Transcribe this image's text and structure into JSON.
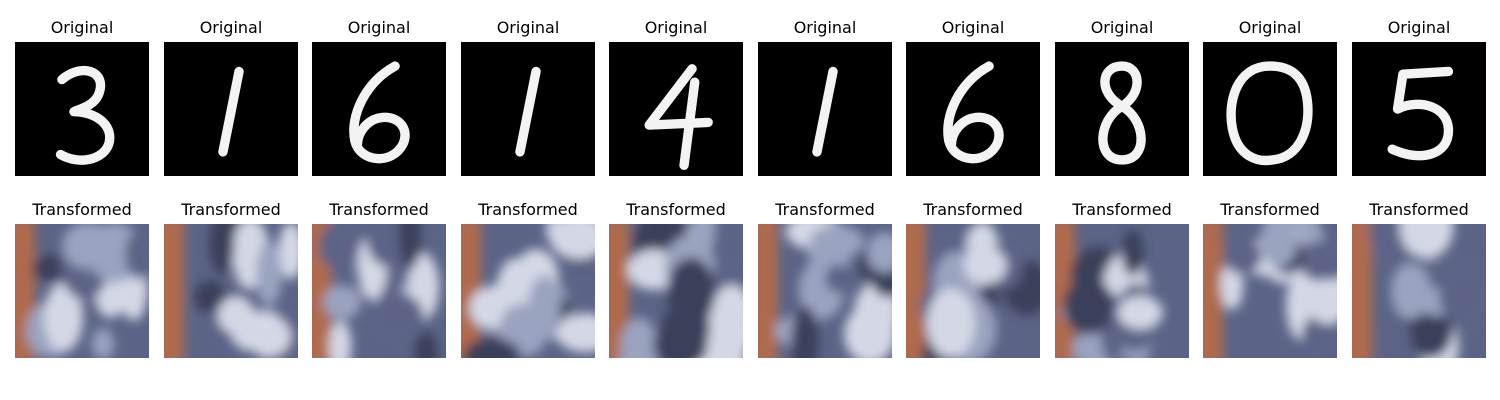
{
  "figure": {
    "original_title": "Original",
    "transformed_title": "Transformed",
    "digits": [
      "3",
      "1",
      "6",
      "1",
      "4",
      "1",
      "6",
      "8",
      "0",
      "5"
    ],
    "colors": {
      "original_bg": "#000000",
      "digit_stroke": "#f3f3f3",
      "transformed_tones": [
        "#3a3f5a",
        "#5b6487",
        "#9aa3bf",
        "#d4d8e6",
        "#b06a4e"
      ]
    }
  }
}
